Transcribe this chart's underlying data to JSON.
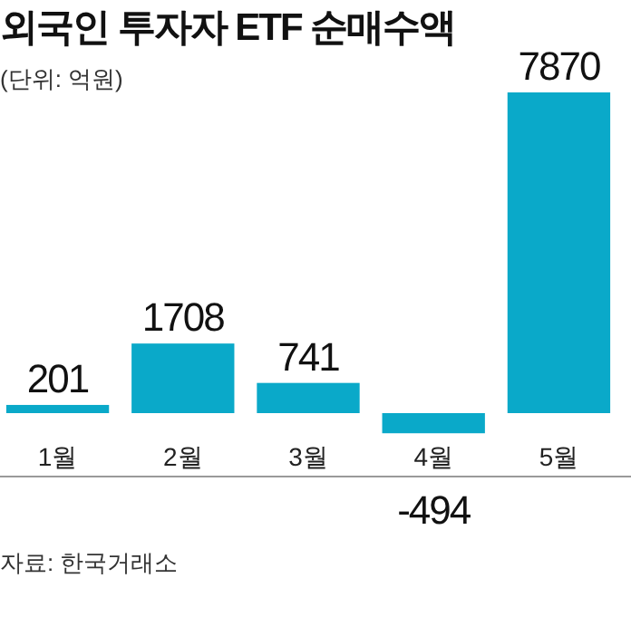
{
  "chart_data": {
    "type": "bar",
    "title": "외국인 투자자 ETF 순매수액",
    "subtitle": "(단위: 억원)",
    "categories": [
      "1월",
      "2월",
      "3월",
      "4월",
      "5월"
    ],
    "values": [
      201,
      1708,
      741,
      -494,
      7870
    ],
    "color": "#0aa9c9",
    "data_labels": true,
    "annotations": [
      "자료: 한국거래소"
    ]
  }
}
